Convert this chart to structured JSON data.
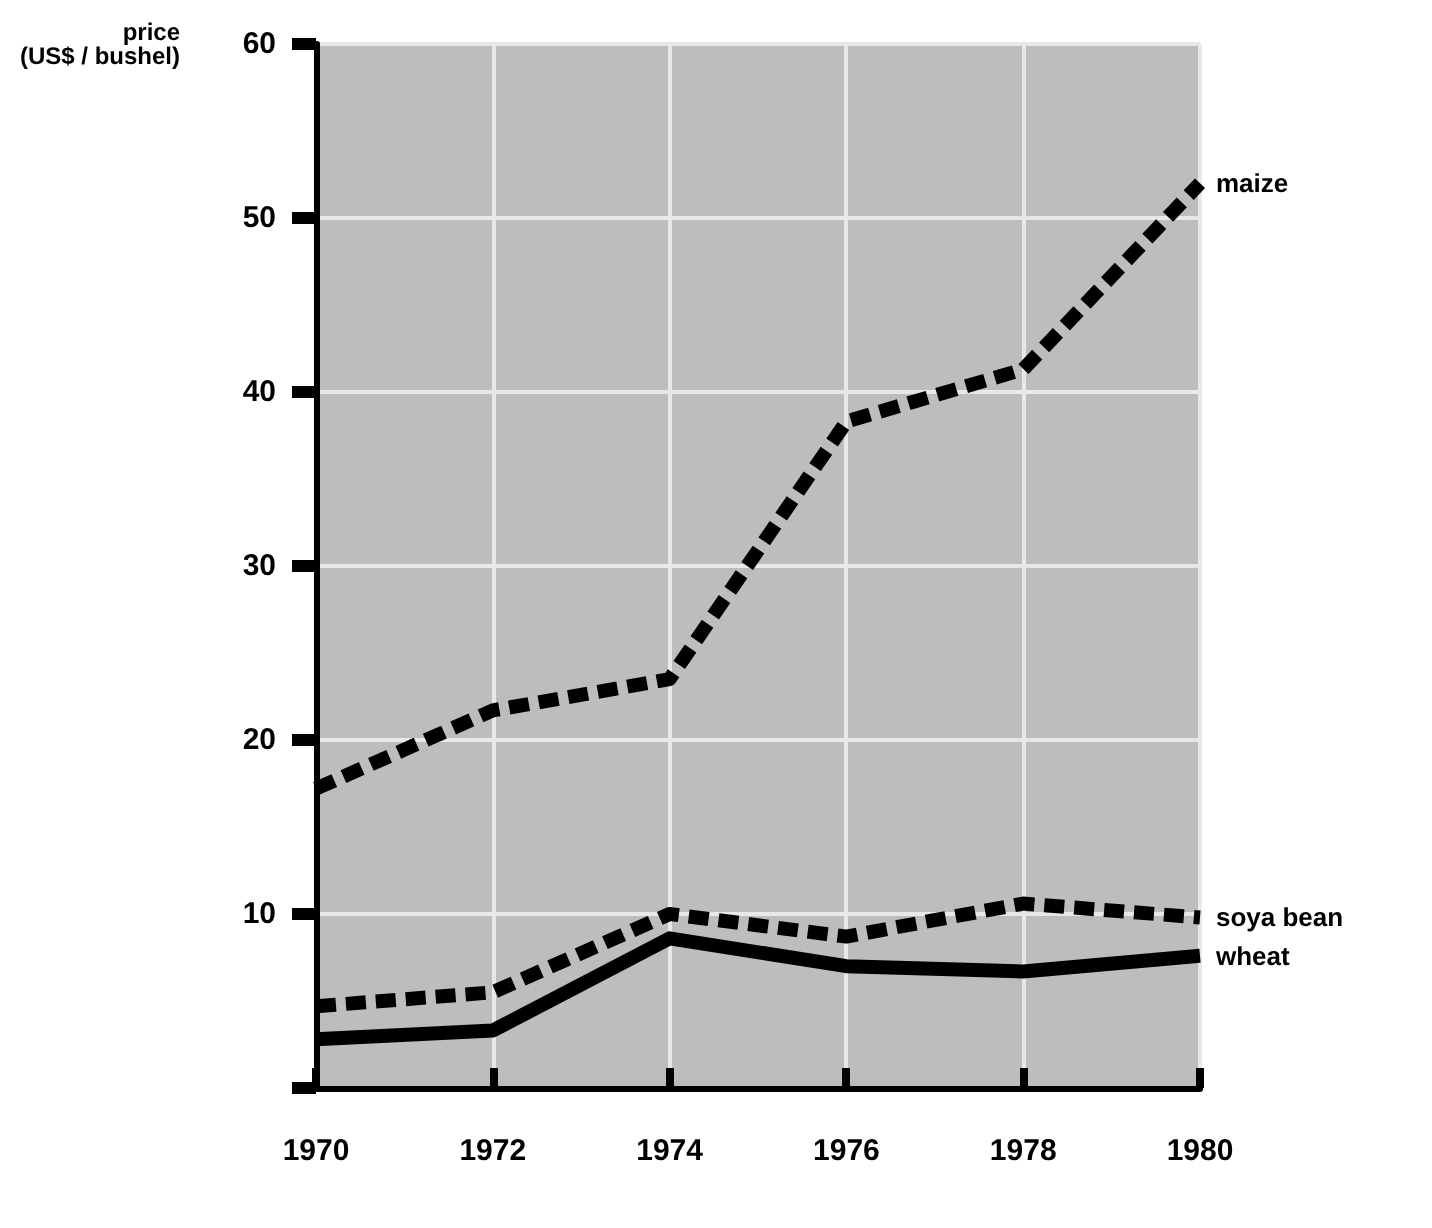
{
  "chart_data": {
    "type": "line",
    "ylabel": "price\n(US$ / bushel)",
    "x": [
      1970,
      1972,
      1974,
      1976,
      1978,
      1980
    ],
    "series": [
      {
        "name": "maize",
        "color": "#000000",
        "line_style": "dashed",
        "values": [
          17.2,
          21.7,
          23.5,
          38.3,
          41.3,
          52
        ]
      },
      {
        "name": "soya bean",
        "color": "#000000",
        "line_style": "dashed",
        "values": [
          4.7,
          5.5,
          10.0,
          8.7,
          10.6,
          9.8
        ]
      },
      {
        "name": "wheat",
        "color": "#000000",
        "line_style": "solid",
        "values": [
          2.8,
          3.3,
          8.6,
          7.0,
          6.7,
          7.6
        ]
      }
    ],
    "xlim": [
      1970,
      1980
    ],
    "xticks": [
      1970,
      1972,
      1974,
      1976,
      1978,
      1980
    ],
    "ylim": [
      0,
      60
    ],
    "yticks": [
      {
        "value": 0,
        "label": null
      },
      10,
      20,
      30,
      40,
      50,
      60
    ],
    "grid": true,
    "marker": "none",
    "legend": false
  }
}
